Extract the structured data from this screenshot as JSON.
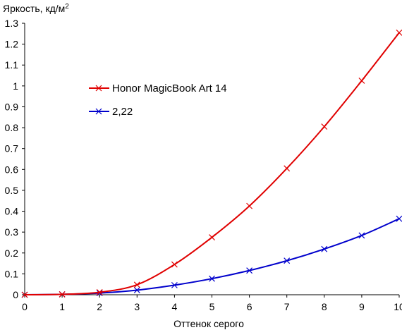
{
  "chart_data": {
    "type": "line",
    "ylabel": "Яркость, кд/м",
    "ylabel_sup": "2",
    "xlabel": "Оттенок серого",
    "x": [
      0,
      1,
      2,
      3,
      4,
      5,
      6,
      7,
      8,
      9,
      10
    ],
    "xlim": [
      0,
      10
    ],
    "ylim": [
      0,
      1.3
    ],
    "x_ticks": [
      "0",
      "1",
      "2",
      "3",
      "4",
      "5",
      "6",
      "7",
      "8",
      "9",
      "10"
    ],
    "y_ticks": [
      {
        "value": 0,
        "label": "0"
      },
      {
        "value": 0.1,
        "label": "0.1"
      },
      {
        "value": 0.2,
        "label": "0.2"
      },
      {
        "value": 0.3,
        "label": "0.3"
      },
      {
        "value": 0.4,
        "label": "0.4"
      },
      {
        "value": 0.5,
        "label": "0.5"
      },
      {
        "value": 0.6,
        "label": "0.6"
      },
      {
        "value": 0.7,
        "label": "0.7"
      },
      {
        "value": 0.8,
        "label": "0.8"
      },
      {
        "value": 0.9,
        "label": "0.9"
      },
      {
        "value": 1.0,
        "label": "1"
      },
      {
        "value": 1.1,
        "label": "1.1"
      },
      {
        "value": 1.2,
        "label": "1.2"
      },
      {
        "value": 1.3,
        "label": "1.3"
      }
    ],
    "grid": false,
    "legend_position": "upper-left inside plot",
    "series": [
      {
        "name": "Honor MagicBook Art 14",
        "color": "#e00000",
        "marker": "x",
        "values": [
          0.0,
          0.002,
          0.012,
          0.048,
          0.145,
          0.275,
          0.425,
          0.605,
          0.805,
          1.025,
          1.255
        ]
      },
      {
        "name": "2,22",
        "color": "#0000cc",
        "marker": "x",
        "values": [
          0.0,
          0.002,
          0.008,
          0.022,
          0.046,
          0.077,
          0.116,
          0.163,
          0.219,
          0.284,
          0.364
        ]
      }
    ]
  }
}
